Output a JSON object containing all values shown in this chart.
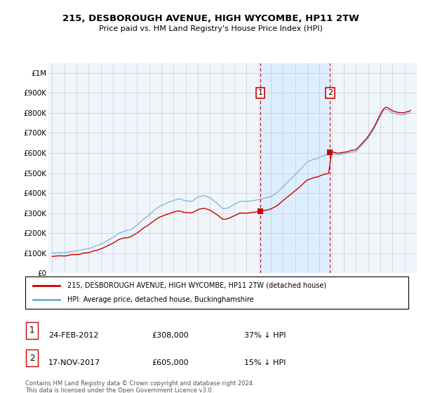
{
  "title": "215, DESBOROUGH AVENUE, HIGH WYCOMBE, HP11 2TW",
  "subtitle": "Price paid vs. HM Land Registry's House Price Index (HPI)",
  "hpi_color": "#6baed6",
  "price_color": "#cc0000",
  "shading_color": "#ddeeff",
  "background_color": "#ffffff",
  "plot_bg_color": "#f0f5fb",
  "grid_color": "#cccccc",
  "ylim": [
    0,
    1050000
  ],
  "yticks": [
    0,
    100000,
    200000,
    300000,
    400000,
    500000,
    600000,
    700000,
    800000,
    900000,
    1000000
  ],
  "ytick_labels": [
    "£0",
    "£100K",
    "£200K",
    "£300K",
    "£400K",
    "£500K",
    "£600K",
    "£700K",
    "£800K",
    "£900K",
    "£1M"
  ],
  "transaction1": {
    "date": "24-FEB-2012",
    "price": 308000,
    "pct": "37%",
    "year": 2012.12,
    "label": "1"
  },
  "transaction2": {
    "date": "17-NOV-2017",
    "price": 605000,
    "pct": "15%",
    "label": "2",
    "year": 2017.87
  },
  "legend_line1": "215, DESBOROUGH AVENUE, HIGH WYCOMBE, HP11 2TW (detached house)",
  "legend_line2": "HPI: Average price, detached house, Buckinghamshire",
  "footer": "Contains HM Land Registry data © Crown copyright and database right 2024.\nThis data is licensed under the Open Government Licence v3.0.",
  "xlim_left": 1994.7,
  "xlim_right": 2025.0
}
